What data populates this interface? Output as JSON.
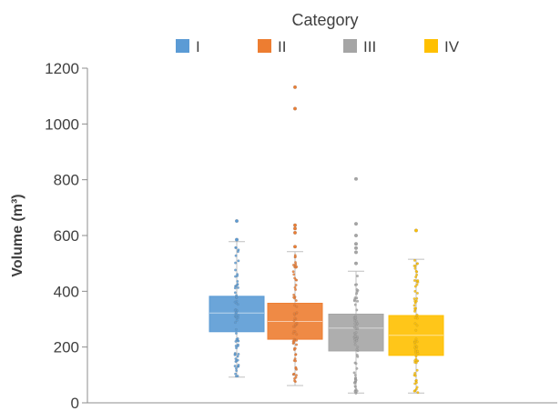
{
  "chart_data": {
    "type": "box",
    "legend_title": "Category",
    "legend_position": "top",
    "ylabel": "Volume (m³)",
    "xlabel": "",
    "ylim": [
      0,
      1200
    ],
    "yticks": [
      0,
      200,
      400,
      600,
      800,
      1000,
      1200
    ],
    "grid": false,
    "series": [
      {
        "name": "I",
        "color": "#5B9BD5",
        "min": 92,
        "q1": 255,
        "median": 322,
        "mean": 322,
        "q3": 382,
        "max": 578,
        "outliers": [
          585,
          652
        ]
      },
      {
        "name": "II",
        "color": "#ED7D31",
        "min": 62,
        "q1": 228,
        "median": 292,
        "mean": 292,
        "q3": 357,
        "max": 542,
        "outliers": [
          560,
          610,
          625,
          637,
          1055,
          1132
        ]
      },
      {
        "name": "III",
        "color": "#A5A5A5",
        "min": 35,
        "q1": 186,
        "median": 268,
        "mean": 262,
        "q3": 318,
        "max": 472,
        "outliers": [
          500,
          540,
          555,
          570,
          600,
          642,
          803
        ]
      },
      {
        "name": "IV",
        "color": "#FFC000",
        "min": 35,
        "q1": 170,
        "median": 242,
        "mean": 246,
        "q3": 313,
        "max": 515,
        "outliers": [
          618
        ]
      }
    ]
  }
}
